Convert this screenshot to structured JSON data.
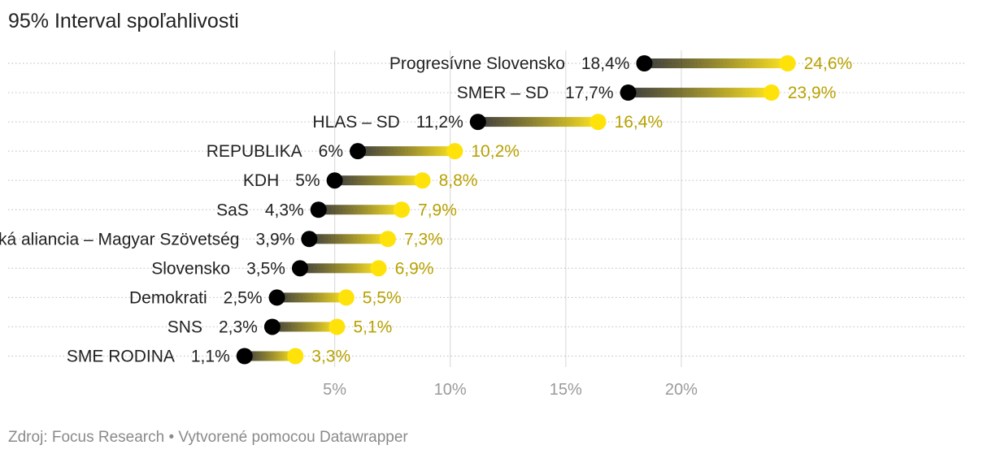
{
  "title": "95% Interval spoľahlivosti",
  "footer": {
    "source": "Zdroj: Focus Research",
    "separator": " • ",
    "credit": "Vytvorené pomocou Datawrapper"
  },
  "colors": {
    "low": "#000000",
    "high": "#ffe20a",
    "high_label": "#b8a100",
    "grid": "#dddddd",
    "tick": "#9a9a9a",
    "text": "#222222"
  },
  "chart_data": {
    "type": "range-dot",
    "title": "95% Interval spoľahlivosti",
    "xlim": [
      0,
      25
    ],
    "x_ticks": [
      5,
      10,
      15,
      20
    ],
    "x_tick_labels": [
      "5%",
      "10%",
      "15%",
      "20%"
    ],
    "series": [
      {
        "name": "low",
        "color": "#000000"
      },
      {
        "name": "high",
        "color": "#ffe20a"
      }
    ],
    "rows": [
      {
        "name": "Progresívne Slovensko",
        "low": 18.4,
        "high": 24.6,
        "low_label": "18,4%",
        "high_label": "24,6%"
      },
      {
        "name": "SMER – SD",
        "low": 17.7,
        "high": 23.9,
        "low_label": "17,7%",
        "high_label": "23,9%"
      },
      {
        "name": "HLAS – SD",
        "low": 11.2,
        "high": 16.4,
        "low_label": "11,2%",
        "high_label": "16,4%"
      },
      {
        "name": "REPUBLIKA",
        "low": 6,
        "high": 10.2,
        "low_label": "6%",
        "high_label": "10,2%"
      },
      {
        "name": "KDH",
        "low": 5,
        "high": 8.8,
        "low_label": "5%",
        "high_label": "8,8%"
      },
      {
        "name": "SaS",
        "low": 4.3,
        "high": 7.9,
        "low_label": "4,3%",
        "high_label": "7,9%"
      },
      {
        "name": "Maďarská aliancia – Magyar Szövetség",
        "low": 3.9,
        "high": 7.3,
        "low_label": "3,9%",
        "high_label": "7,3%"
      },
      {
        "name": "Slovensko",
        "low": 3.5,
        "high": 6.9,
        "low_label": "3,5%",
        "high_label": "6,9%"
      },
      {
        "name": "Demokrati",
        "low": 2.5,
        "high": 5.5,
        "low_label": "2,5%",
        "high_label": "5,5%"
      },
      {
        "name": "SNS",
        "low": 2.3,
        "high": 5.1,
        "low_label": "2,3%",
        "high_label": "5,1%"
      },
      {
        "name": "SME RODINA",
        "low": 1.1,
        "high": 3.3,
        "low_label": "1,1%",
        "high_label": "3,3%"
      }
    ]
  }
}
